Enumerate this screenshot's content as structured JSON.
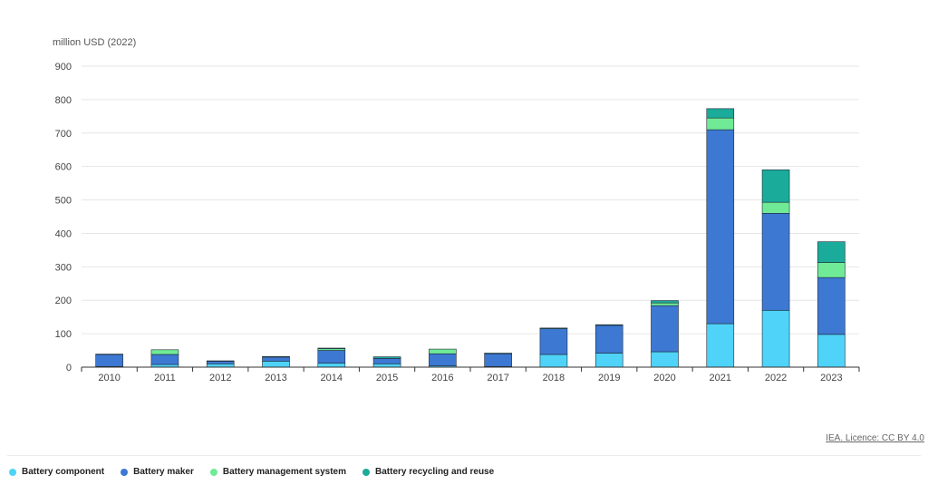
{
  "chart_data": {
    "type": "bar",
    "stacked": true,
    "ylabel": "million USD (2022)",
    "ylim": [
      0,
      900
    ],
    "yticks": [
      0,
      100,
      200,
      300,
      400,
      500,
      600,
      700,
      800,
      900
    ],
    "grid": true,
    "legend_position": "bottom-left",
    "categories": [
      "2010",
      "2011",
      "2012",
      "2013",
      "2014",
      "2015",
      "2016",
      "2017",
      "2018",
      "2019",
      "2020",
      "2021",
      "2022",
      "2023"
    ],
    "series": [
      {
        "name": "Battery component",
        "color": "#4fd3f8",
        "values": [
          2,
          8,
          10,
          18,
          12,
          10,
          4,
          2,
          38,
          42,
          46,
          130,
          170,
          98
        ]
      },
      {
        "name": "Battery maker",
        "color": "#3d78d3",
        "values": [
          36,
          30,
          8,
          12,
          38,
          16,
          36,
          38,
          77,
          83,
          138,
          580,
          290,
          170
        ]
      },
      {
        "name": "Battery management system",
        "color": "#70ea96",
        "values": [
          1,
          14,
          0,
          0,
          5,
          0,
          14,
          0,
          0,
          0,
          8,
          35,
          33,
          45
        ]
      },
      {
        "name": "Battery recycling and reuse",
        "color": "#1aab9a",
        "values": [
          0,
          0,
          1,
          2,
          2,
          5,
          0,
          2,
          2,
          2,
          7,
          28,
          97,
          62
        ]
      }
    ]
  },
  "credit": "IEA. Licence: CC BY 4.0"
}
